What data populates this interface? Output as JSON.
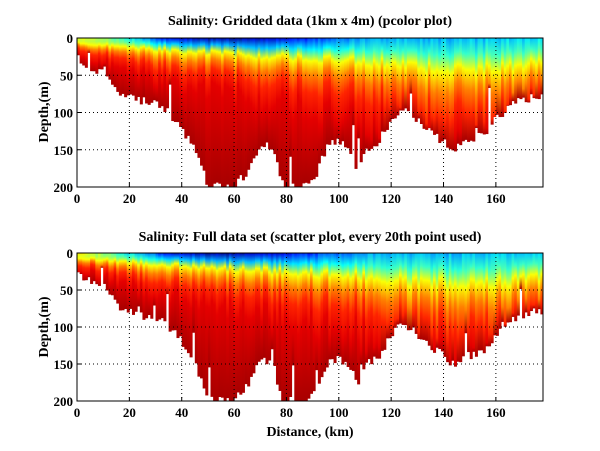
{
  "chart_data": [
    {
      "type": "heatmap",
      "title": "Salinity: Gridded data (1km x 4m) (pcolor plot)",
      "xlabel": "",
      "ylabel": "Depth,(m)",
      "xlim": [
        0,
        178
      ],
      "ylim": [
        200,
        0
      ],
      "xticks": [
        "0",
        "20",
        "40",
        "60",
        "80",
        "100",
        "120",
        "140",
        "160"
      ],
      "yticks": [
        "0",
        "50",
        "100",
        "150",
        "200"
      ],
      "grid": true,
      "colormap": "jet",
      "bottom_depth": {
        "distance_km": [
          0,
          3,
          6,
          10,
          12,
          15,
          20,
          25,
          30,
          35,
          40,
          45,
          48,
          50,
          55,
          60,
          65,
          70,
          75,
          78,
          80,
          85,
          90,
          95,
          100,
          105,
          108,
          110,
          115,
          120,
          125,
          130,
          135,
          140,
          143,
          148,
          155,
          160,
          165,
          170,
          175,
          178
        ],
        "depth_m": [
          28,
          35,
          42,
          45,
          55,
          70,
          80,
          85,
          90,
          100,
          120,
          150,
          175,
          200,
          200,
          200,
          180,
          140,
          150,
          190,
          200,
          200,
          195,
          150,
          135,
          160,
          185,
          150,
          140,
          110,
          95,
          110,
          125,
          140,
          150,
          140,
          130,
          110,
          90,
          85,
          80,
          78
        ]
      },
      "surface_value": {
        "distance_km": [
          0,
          8,
          20,
          35,
          50,
          65,
          80,
          95,
          110,
          125,
          140,
          160,
          178
        ],
        "normalized_salinity": [
          0.62,
          0.55,
          0.35,
          0.12,
          0.04,
          0.05,
          0.12,
          0.2,
          0.28,
          0.3,
          0.3,
          0.32,
          0.35
        ]
      },
      "halocline_depth": {
        "distance_km": [
          0,
          10,
          30,
          60,
          90,
          110,
          130,
          150,
          170,
          178
        ],
        "depth_m": [
          8,
          12,
          20,
          28,
          35,
          40,
          50,
          55,
          45,
          40
        ]
      }
    },
    {
      "type": "heatmap",
      "title": "Salinity: Full data set (scatter plot, every 20th point used)",
      "xlabel": "Distance, (km)",
      "ylabel": "Depth,(m)",
      "xlim": [
        0,
        178
      ],
      "ylim": [
        200,
        0
      ],
      "xticks": [
        "0",
        "20",
        "40",
        "60",
        "80",
        "100",
        "120",
        "140",
        "160"
      ],
      "yticks": [
        "0",
        "50",
        "100",
        "150",
        "200"
      ],
      "grid": true,
      "colormap": "jet",
      "bottom_depth": {
        "distance_km": [
          0,
          3,
          6,
          10,
          12,
          15,
          20,
          25,
          30,
          35,
          40,
          45,
          48,
          50,
          55,
          60,
          65,
          70,
          75,
          78,
          80,
          85,
          90,
          95,
          100,
          105,
          108,
          110,
          115,
          120,
          125,
          130,
          135,
          140,
          143,
          148,
          155,
          160,
          165,
          170,
          175,
          178
        ],
        "depth_m": [
          26,
          33,
          40,
          44,
          55,
          70,
          80,
          85,
          88,
          100,
          120,
          150,
          180,
          200,
          200,
          200,
          180,
          145,
          150,
          195,
          200,
          200,
          195,
          150,
          140,
          160,
          182,
          150,
          140,
          110,
          95,
          110,
          125,
          140,
          150,
          142,
          132,
          110,
          88,
          85,
          80,
          80
        ]
      },
      "surface_value": {
        "distance_km": [
          0,
          8,
          20,
          35,
          50,
          65,
          80,
          95,
          110,
          125,
          140,
          160,
          178
        ],
        "normalized_salinity": [
          0.62,
          0.55,
          0.35,
          0.12,
          0.04,
          0.05,
          0.12,
          0.2,
          0.28,
          0.3,
          0.3,
          0.32,
          0.35
        ]
      },
      "halocline_depth": {
        "distance_km": [
          0,
          10,
          30,
          60,
          90,
          110,
          130,
          150,
          170,
          178
        ],
        "depth_m": [
          8,
          12,
          20,
          28,
          35,
          40,
          50,
          55,
          45,
          40
        ]
      }
    }
  ]
}
